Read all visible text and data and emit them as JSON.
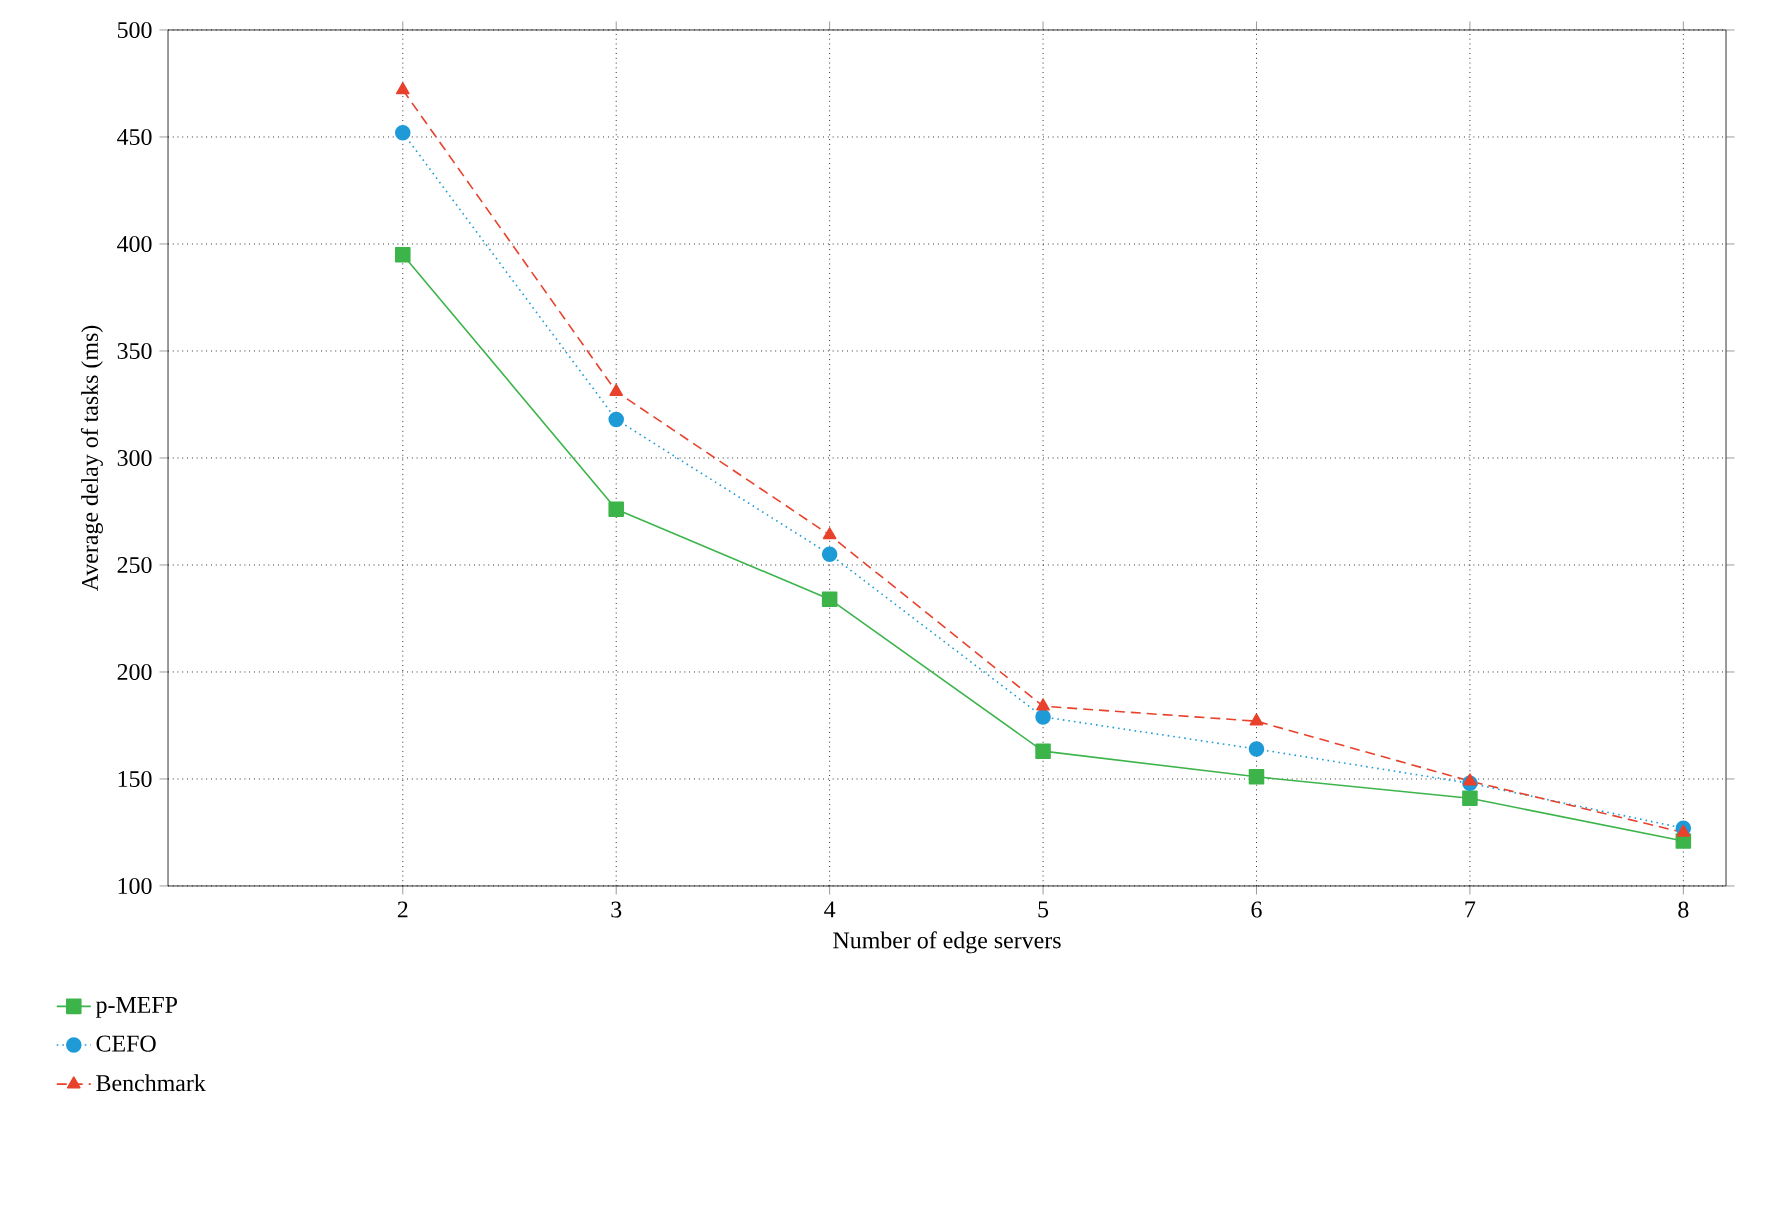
{
  "chart_data": {
    "type": "line",
    "xlabel": "Number of edge servers",
    "ylabel": "Average delay of tasks (ms)",
    "x": [
      2,
      3,
      4,
      5,
      6,
      7,
      8
    ],
    "series": [
      {
        "name": "p-MEFP",
        "color": "#3cb44a",
        "marker": "square",
        "line_style": "solid",
        "values": [
          395,
          276,
          234,
          163,
          151,
          141,
          121
        ]
      },
      {
        "name": "CEFO",
        "color": "#1e9bd7",
        "marker": "circle",
        "line_style": "dotted",
        "values": [
          452,
          318,
          255,
          179,
          164,
          148,
          127
        ]
      },
      {
        "name": "Benchmark",
        "color": "#e8412c",
        "marker": "triangle",
        "line_style": "dashed",
        "values": [
          472,
          331,
          264,
          184,
          177,
          149,
          125
        ]
      }
    ],
    "xlim": [
      0.9,
      8.2
    ],
    "ylim": [
      100,
      500
    ],
    "xticks": [
      2,
      3,
      4,
      5,
      6,
      7,
      8
    ],
    "yticks": [
      100,
      150,
      200,
      250,
      300,
      350,
      400,
      450,
      500
    ],
    "grid": true,
    "legend": "bottom left"
  }
}
